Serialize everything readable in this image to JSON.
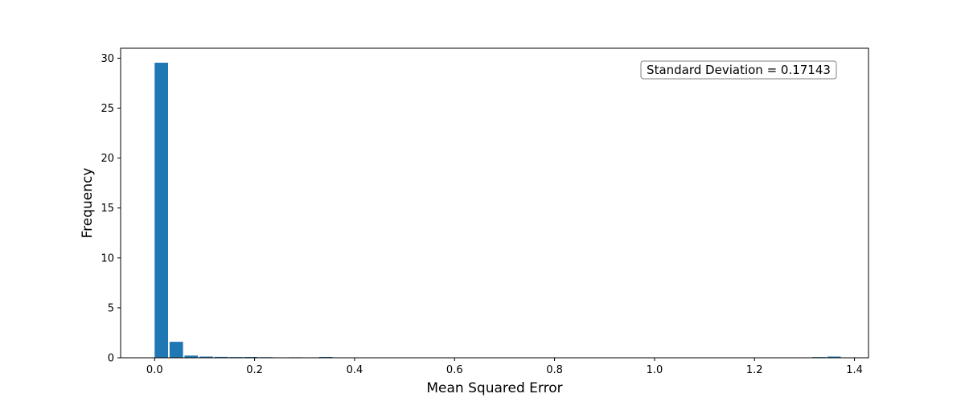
{
  "chart_data": {
    "type": "bar",
    "title": "",
    "xlabel": "Mean Squared Error",
    "ylabel": "Frequency",
    "xlim": [
      -0.068,
      1.428
    ],
    "ylim": [
      0,
      31
    ],
    "xticks": [
      0.0,
      0.2,
      0.4,
      0.6,
      0.8,
      1.0,
      1.2,
      1.4
    ],
    "xtick_labels": [
      "0.0",
      "0.2",
      "0.4",
      "0.6",
      "0.8",
      "1.0",
      "1.2",
      "1.4"
    ],
    "yticks": [
      0,
      5,
      10,
      15,
      20,
      25,
      30
    ],
    "ytick_labels": [
      "0",
      "5",
      "10",
      "15",
      "20",
      "25",
      "30"
    ],
    "bin_width": 0.0299,
    "bar_width_fraction": 0.9,
    "bin_starts": [
      0.0,
      0.0299,
      0.0598,
      0.0897,
      0.1196,
      0.1495,
      0.1794,
      0.2093,
      0.2392,
      0.2691,
      0.299,
      0.3289,
      0.3588,
      0.3887,
      1.3156,
      1.3455
    ],
    "values": [
      29.55,
      1.6,
      0.22,
      0.12,
      0.09,
      0.07,
      0.08,
      0.06,
      0.02,
      0.05,
      0.01,
      0.08,
      0.01,
      0.01,
      0.07,
      0.12
    ],
    "bar_color": "#1f77b4",
    "annotation": "Standard Deviation = 0.17143",
    "annotation_placement": "top-right",
    "grid": false
  }
}
